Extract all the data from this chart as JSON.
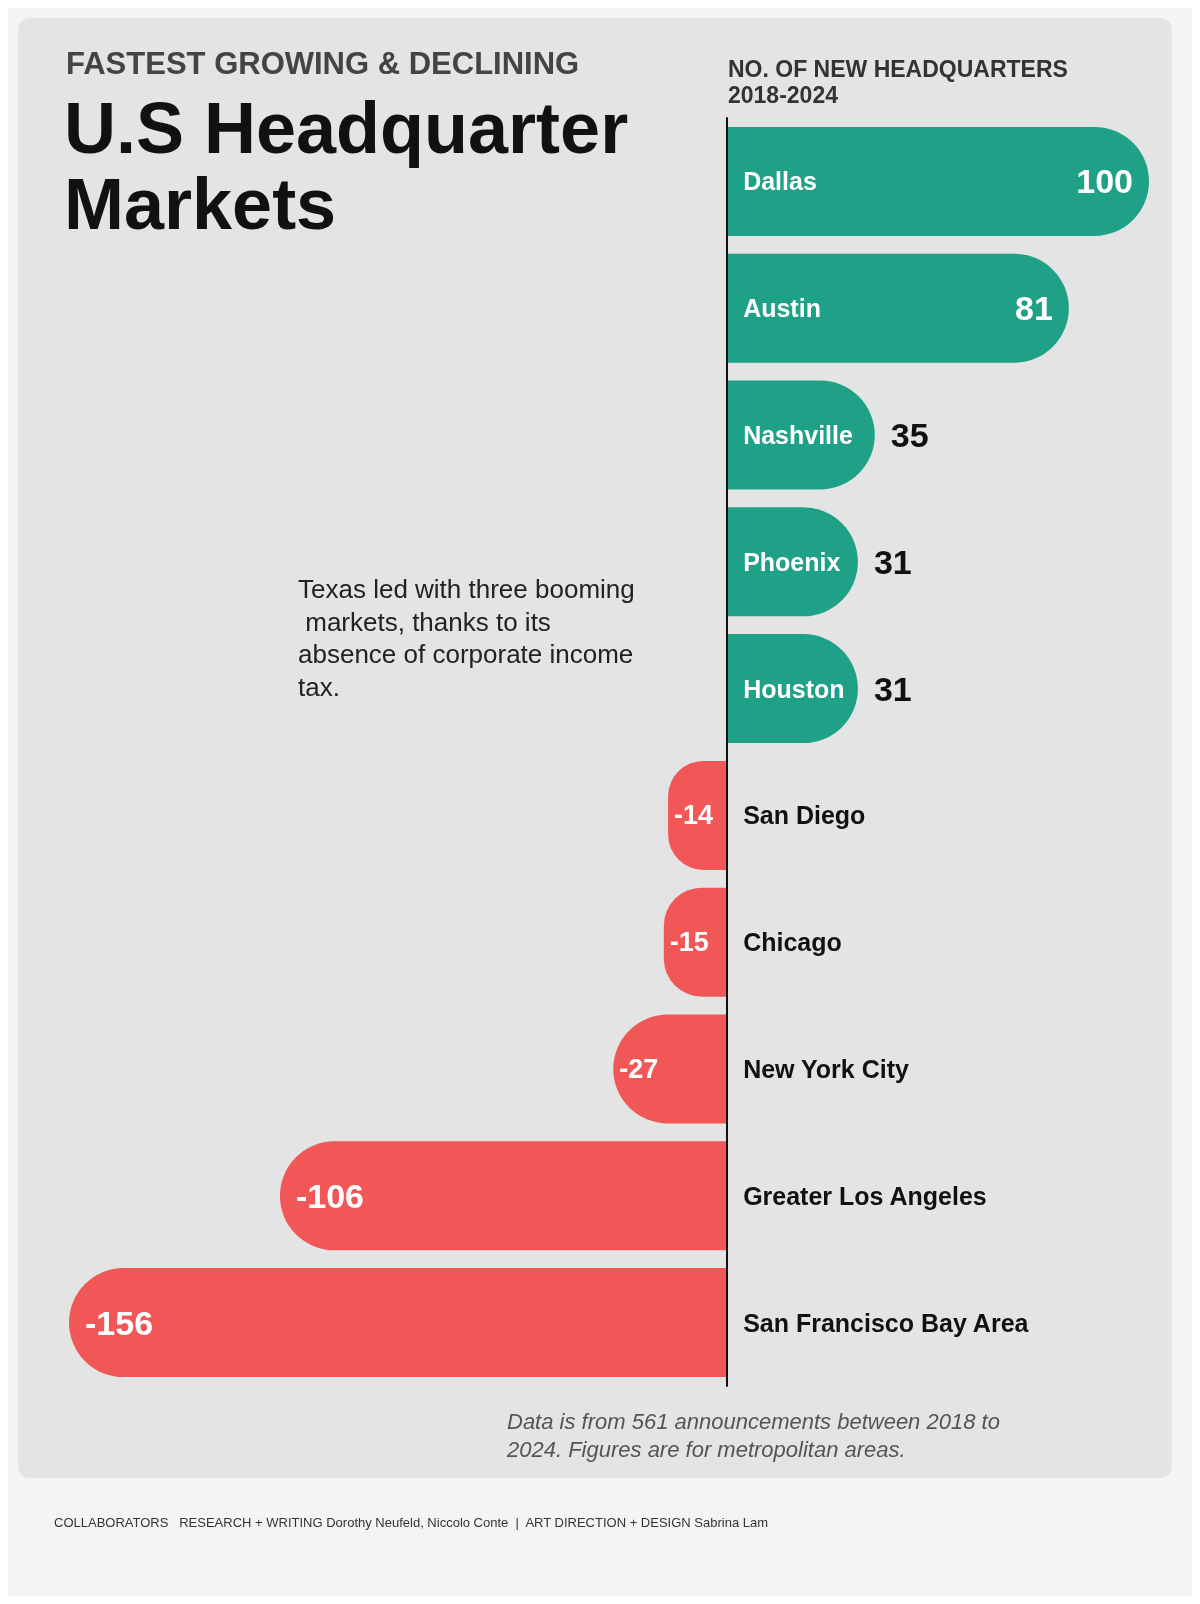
{
  "chart_data": {
    "type": "bar",
    "orientation": "horizontal",
    "subtitle": "FASTEST GROWING & DECLINING",
    "title": "U.S Headquarter Markets",
    "xlabel": "NO. OF NEW HEADQUARTERS 2018-2024",
    "categories": [
      "Dallas",
      "Austin",
      "Nashville",
      "Phoenix",
      "Houston",
      "San Diego",
      "Chicago",
      "New York City",
      "Greater Los Angeles",
      "San Francisco Bay Area"
    ],
    "values": [
      100,
      81,
      35,
      31,
      31,
      -14,
      -15,
      -27,
      -106,
      -156
    ],
    "colors": [
      "#1fa187",
      "#1fa187",
      "#1fa187",
      "#1fa187",
      "#1fa187",
      "#f25757",
      "#f25757",
      "#f25757",
      "#f25757",
      "#f25757"
    ],
    "data_labels": true,
    "annotations": [
      "Texas led with three booming markets, thanks to its absence of corporate income tax.",
      "Data is from 561 announcements between 2018 to 2024. Figures are for metropolitan areas.",
      "COLLABORATORS   RESEARCH + WRITING Dorothy Neufeld, Niccolo Conte  |  ART DIRECTION + DESIGN Sabrina Lam"
    ]
  }
}
